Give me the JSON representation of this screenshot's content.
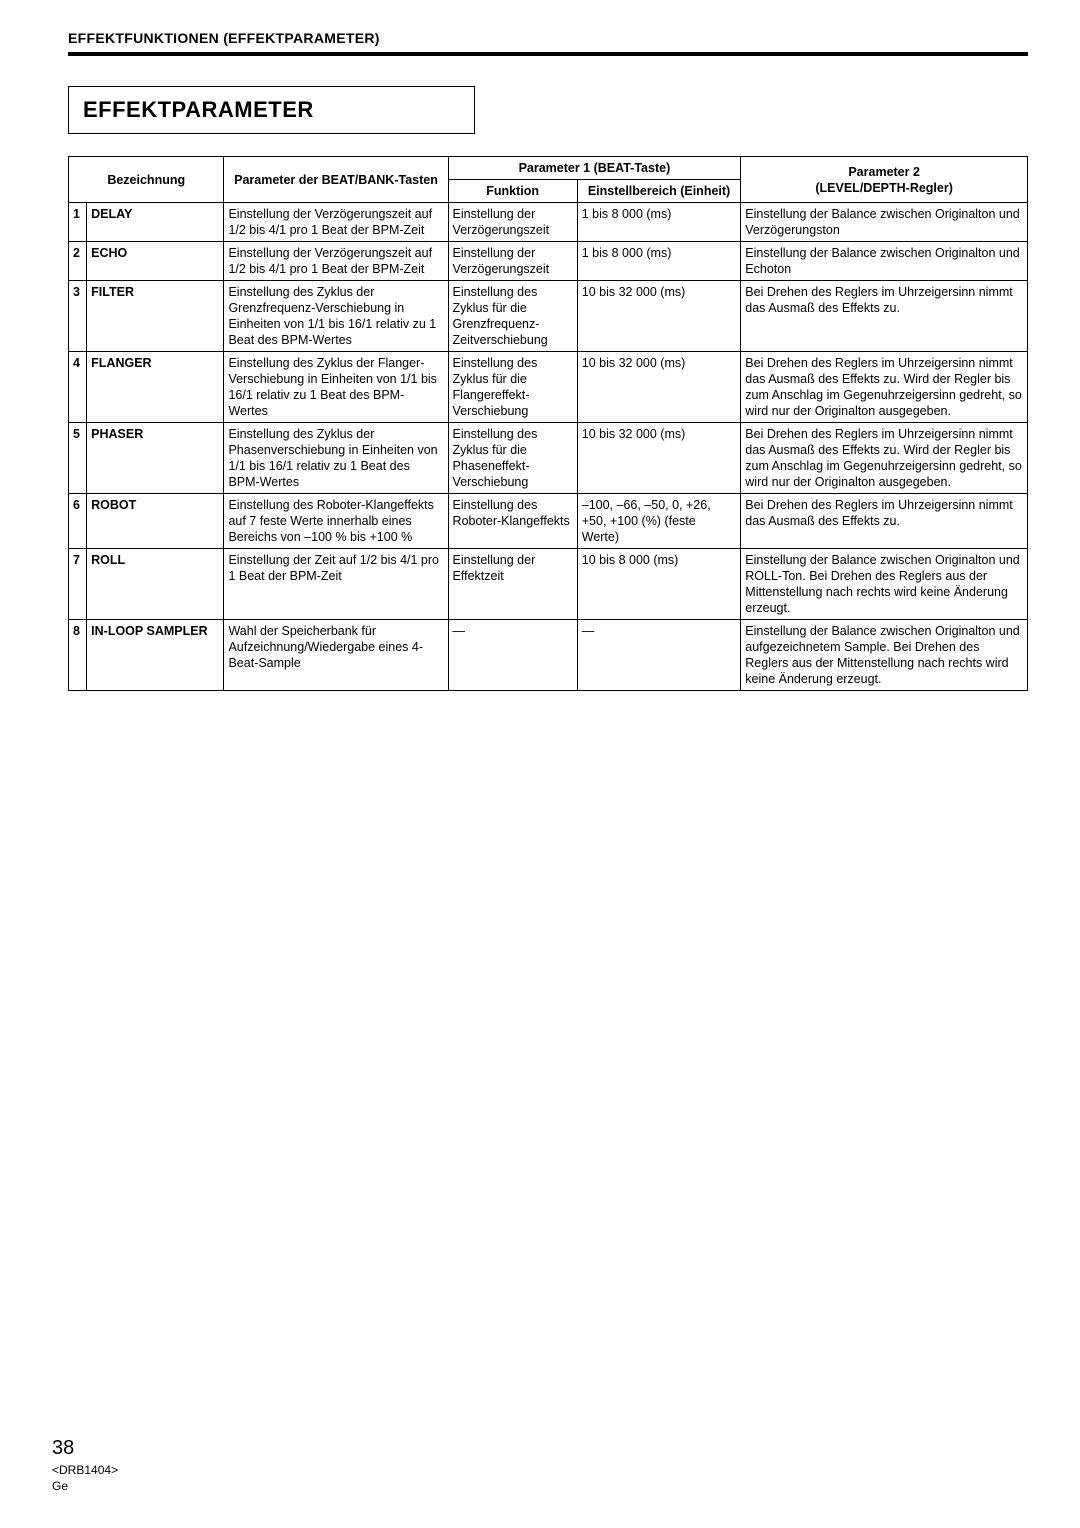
{
  "header": {
    "running": "EFFEKTFUNKTIONEN (EFFEKTPARAMETER)",
    "section_title": "EFFEKTPARAMETER"
  },
  "table": {
    "head": {
      "bezeichnung": "Bezeichnung",
      "beat_bank": "Parameter der BEAT/BANK-Tasten",
      "param1_group": "Parameter 1 (BEAT-Taste)",
      "funktion": "Funktion",
      "einstellbereich": "Einstellbereich (Einheit)",
      "param2": "Parameter 2\n(LEVEL/DEPTH-Regler)"
    },
    "rows": [
      {
        "n": "1",
        "name": "DELAY",
        "beat": "Einstellung der Verzögerungszeit auf 1/2 bis 4/1 pro 1 Beat der BPM-Zeit",
        "funk": "Einstellung der Verzögerungszeit",
        "range": "1 bis 8 000 (ms)",
        "lvl": "Einstellung der Balance zwischen Originalton und Verzögerungston"
      },
      {
        "n": "2",
        "name": "ECHO",
        "beat": "Einstellung der Verzögerungszeit auf 1/2 bis 4/1 pro 1 Beat der BPM-Zeit",
        "funk": "Einstellung der Verzögerungszeit",
        "range": "1 bis 8 000 (ms)",
        "lvl": "Einstellung der Balance zwischen Originalton und Echoton"
      },
      {
        "n": "3",
        "name": "FILTER",
        "beat": "Einstellung des Zyklus der Grenzfrequenz-Verschiebung in Einheiten von 1/1 bis 16/1 relativ zu 1 Beat des BPM-Wertes",
        "funk": "Einstellung des Zyklus für die Grenzfrequenz-Zeitverschiebung",
        "range": "10 bis 32 000 (ms)",
        "lvl": "Bei Drehen des Reglers im Uhrzeigersinn nimmt das Ausmaß des Effekts zu."
      },
      {
        "n": "4",
        "name": "FLANGER",
        "beat": "Einstellung des Zyklus der Flanger-Verschiebung in Einheiten von 1/1 bis 16/1 relativ zu 1 Beat des BPM-Wertes",
        "funk": "Einstellung des Zyklus für die Flangereffekt-Verschiebung",
        "range": "10 bis 32 000 (ms)",
        "lvl": "Bei Drehen des Reglers im Uhrzeigersinn nimmt das Ausmaß des Effekts zu. Wird der Regler bis zum Anschlag im Gegenuhrzeigersinn gedreht, so wird nur der Originalton ausgegeben."
      },
      {
        "n": "5",
        "name": "PHASER",
        "beat": "Einstellung des Zyklus der Phasenverschiebung in Einheiten von 1/1 bis 16/1 relativ zu 1 Beat des BPM-Wertes",
        "funk": "Einstellung des Zyklus für die Phaseneffekt-Verschiebung",
        "range": "10 bis 32 000 (ms)",
        "lvl": "Bei Drehen des Reglers im Uhrzeigersinn nimmt das Ausmaß des Effekts zu. Wird der Regler bis zum Anschlag im Gegenuhrzeigersinn gedreht, so wird nur der Originalton ausgegeben."
      },
      {
        "n": "6",
        "name": "ROBOT",
        "beat": "Einstellung des Roboter-Klangeffekts auf 7 feste Werte innerhalb eines Bereichs von –100 % bis +100 %",
        "funk": "Einstellung des Roboter-Klangeffekts",
        "range": "–100, –66, –50, 0, +26, +50, +100 (%) (feste Werte)",
        "lvl": "Bei Drehen des Reglers im Uhrzeigersinn nimmt das Ausmaß des Effekts zu."
      },
      {
        "n": "7",
        "name": "ROLL",
        "beat": "Einstellung der Zeit auf 1/2 bis 4/1 pro 1 Beat der BPM-Zeit",
        "funk": "Einstellung der Effektzeit",
        "range": "10 bis 8 000 (ms)",
        "lvl": "Einstellung der Balance zwischen Originalton und ROLL-Ton. Bei Drehen des Reglers aus der Mittenstellung nach rechts wird keine Änderung erzeugt."
      },
      {
        "n": "8",
        "name": "IN-LOOP SAMPLER",
        "beat": "Wahl der Speicherbank für Aufzeichnung/Wiedergabe eines 4-Beat-Sample",
        "funk": "—",
        "range": "—",
        "lvl": "Einstellung der Balance zwischen Originalton und aufgezeichnetem Sample. Bei Drehen des Reglers aus der Mittenstellung nach rechts wird keine Änderung erzeugt."
      }
    ]
  },
  "footer": {
    "page_number": "38",
    "doc_code": "<DRB1404>",
    "lang": "Ge"
  }
}
